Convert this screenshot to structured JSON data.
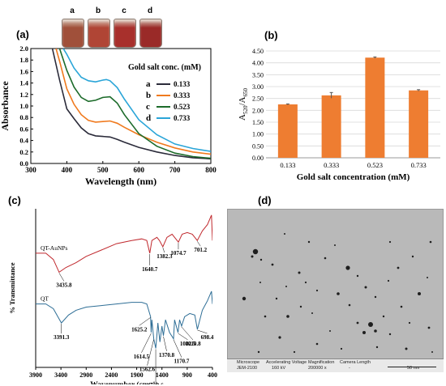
{
  "panel_labels": {
    "a": "(a)",
    "b": "(b)",
    "c": "(c)",
    "d": "(d)"
  },
  "vials": [
    {
      "label": "a",
      "color": "#a0503a"
    },
    {
      "label": "b",
      "color": "#b04535"
    },
    {
      "label": "c",
      "color": "#a8302c"
    },
    {
      "label": "d",
      "color": "#9a2a28"
    }
  ],
  "chart_data": [
    {
      "type": "line",
      "title": "",
      "xlabel": "Wavelength (nm)",
      "ylabel": "Absorbance",
      "xlim": [
        300,
        800
      ],
      "ylim": [
        0,
        2.0
      ],
      "xticks": [
        300,
        400,
        500,
        600,
        700,
        800
      ],
      "yticks": [
        0,
        0.2,
        0.4,
        0.6,
        0.8,
        1.0,
        1.2,
        1.4,
        1.6,
        1.8,
        2.0
      ],
      "legend_title": "Gold salt conc. (mM)",
      "legend_position": "top-right",
      "series": [
        {
          "name": "a",
          "value_label": "0.133",
          "color": "#2b2b3a",
          "x": [
            360,
            380,
            400,
            420,
            440,
            460,
            480,
            500,
            520,
            540,
            560,
            600,
            650,
            700,
            750,
            800
          ],
          "y": [
            2.0,
            1.45,
            0.95,
            0.78,
            0.62,
            0.52,
            0.48,
            0.47,
            0.46,
            0.42,
            0.37,
            0.28,
            0.2,
            0.14,
            0.1,
            0.08
          ]
        },
        {
          "name": "b",
          "value_label": "0.333",
          "color": "#f07a1e",
          "x": [
            370,
            380,
            400,
            420,
            440,
            460,
            480,
            500,
            520,
            540,
            560,
            600,
            650,
            700,
            750,
            800
          ],
          "y": [
            2.0,
            1.78,
            1.3,
            1.03,
            0.85,
            0.75,
            0.72,
            0.73,
            0.74,
            0.7,
            0.63,
            0.5,
            0.37,
            0.27,
            0.2,
            0.16
          ]
        },
        {
          "name": "c",
          "value_label": "0.523",
          "color": "#1c6b2a",
          "x": [
            380,
            400,
            420,
            440,
            460,
            480,
            500,
            520,
            540,
            560,
            600,
            650,
            700,
            750,
            800
          ],
          "y": [
            2.0,
            1.62,
            1.33,
            1.15,
            1.08,
            1.1,
            1.15,
            1.16,
            1.05,
            0.85,
            0.52,
            0.3,
            0.18,
            0.12,
            0.09
          ]
        },
        {
          "name": "d",
          "value_label": "0.733",
          "color": "#2aa5d8",
          "x": [
            390,
            400,
            420,
            440,
            460,
            480,
            500,
            510,
            520,
            540,
            560,
            600,
            650,
            700,
            750,
            800
          ],
          "y": [
            2.0,
            1.9,
            1.66,
            1.5,
            1.44,
            1.42,
            1.45,
            1.46,
            1.44,
            1.32,
            1.12,
            0.76,
            0.5,
            0.34,
            0.26,
            0.21
          ]
        }
      ]
    },
    {
      "type": "bar",
      "title": "",
      "xlabel": "Gold salt concentration (mM)",
      "ylabel": "A520/A650",
      "ylabel_main": "A",
      "ylabel_sub1": "520",
      "ylabel_sep": "/A",
      "ylabel_sub2": "650",
      "ylim": [
        0,
        4.5
      ],
      "yticks": [
        "0.00",
        "0.50",
        "1.00",
        "1.50",
        "2.00",
        "2.50",
        "3.00",
        "3.50",
        "4.00",
        "4.50"
      ],
      "categories": [
        "0.133",
        "0.333",
        "0.523",
        "0.733"
      ],
      "values": [
        2.25,
        2.63,
        4.22,
        2.84
      ],
      "errors": [
        0.02,
        0.12,
        0.03,
        0.03
      ],
      "bar_color": "#ee7d31",
      "grid": true
    },
    {
      "type": "line",
      "title": "",
      "xlabel": "Wavenumber (cm⁻¹)",
      "ylabel": "% Transmittance",
      "xlim": [
        3900,
        400
      ],
      "xticks": [
        3900,
        3400,
        2900,
        2400,
        1900,
        1400,
        900,
        400
      ],
      "series": [
        {
          "name": "QT-AuNPs",
          "color": "#c0282d",
          "x": [
            3900,
            3700,
            3550,
            3436,
            3300,
            3100,
            2900,
            2600,
            2300,
            2000,
            1800,
            1700,
            1641,
            1600,
            1500,
            1450,
            1382,
            1300,
            1200,
            1075,
            1000,
            900,
            800,
            701,
            600,
            500,
            420,
            400
          ],
          "y": [
            72,
            72,
            68,
            60,
            63,
            66,
            70,
            74,
            78,
            80,
            81,
            80,
            72,
            80,
            82,
            80,
            76,
            82,
            84,
            79,
            84,
            85,
            84,
            80,
            86,
            90,
            96,
            80
          ]
        },
        {
          "name": "QT",
          "color": "#2e6e96",
          "x": [
            3900,
            3700,
            3550,
            3391,
            3250,
            3100,
            2900,
            2600,
            2300,
            2000,
            1800,
            1700,
            1625,
            1614,
            1600,
            1563,
            1523,
            1480,
            1440,
            1400,
            1371,
            1330,
            1250,
            1171,
            1150,
            1083,
            1050,
            1011,
            950,
            850,
            750,
            698,
            600,
            500,
            420,
            400
          ],
          "y": [
            40,
            40,
            37,
            28,
            33,
            36,
            38,
            39,
            40,
            41,
            41,
            40,
            32,
            22,
            30,
            18,
            12,
            28,
            16,
            26,
            20,
            30,
            22,
            18,
            30,
            22,
            30,
            26,
            32,
            34,
            33,
            24,
            36,
            42,
            48,
            40
          ]
        }
      ],
      "annotations": [
        {
          "text": "3435.8",
          "series": "QT-AuNPs",
          "x": 3436
        },
        {
          "text": "1640.7",
          "series": "QT-AuNPs",
          "x": 1641
        },
        {
          "text": "1382.3",
          "series": "QT-AuNPs",
          "x": 1382
        },
        {
          "text": "1074.7",
          "series": "QT-AuNPs",
          "x": 1075
        },
        {
          "text": "701.2",
          "series": "QT-AuNPs",
          "x": 701
        },
        {
          "text": "3391.3",
          "series": "QT",
          "x": 3391
        },
        {
          "text": "1625.2",
          "series": "QT",
          "x": 1625
        },
        {
          "text": "1614.5",
          "series": "QT",
          "x": 1614
        },
        {
          "text": "1562.6",
          "series": "QT",
          "x": 1563
        },
        {
          "text": "1522.6",
          "series": "QT",
          "x": 1523
        },
        {
          "text": "1370.8",
          "series": "QT",
          "x": 1371
        },
        {
          "text": "1170.7",
          "series": "QT",
          "x": 1171
        },
        {
          "text": "1082.5",
          "series": "QT",
          "x": 1083
        },
        {
          "text": "1010.8",
          "series": "QT",
          "x": 1011
        },
        {
          "text": "698.4",
          "series": "QT",
          "x": 698
        }
      ]
    }
  ],
  "tem": {
    "fields": [
      "Microscope",
      "Accelerating Voltage",
      "Magnification",
      "Camera Length"
    ],
    "values": [
      "JEM-2100",
      "160 kV",
      "200000 x",
      "-"
    ],
    "scale": "50 nm"
  }
}
